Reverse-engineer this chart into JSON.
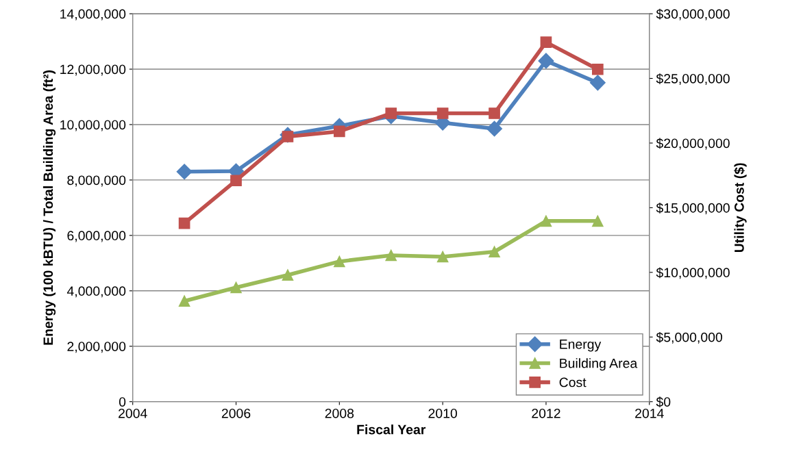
{
  "chart_data": {
    "type": "line",
    "xlabel": "Fiscal Year",
    "ylabel": "Energy (100 kBTU) / Total Building Area (ft²)",
    "y2label": "Utility Cost ($)",
    "x": [
      2005,
      2006,
      2007,
      2008,
      2009,
      2010,
      2011,
      2012,
      2013
    ],
    "series": [
      {
        "name": "Energy",
        "color": "#4f81bd",
        "marker": "diamond",
        "values": [
          8300000,
          8320000,
          9630000,
          9950000,
          10300000,
          10070000,
          9850000,
          12300000,
          11510000
        ]
      },
      {
        "name": "Building Area",
        "color": "#9bbb59",
        "marker": "triangle",
        "values": [
          3630000,
          4120000,
          4570000,
          5060000,
          5280000,
          5230000,
          5410000,
          6520000,
          6520000
        ]
      },
      {
        "name": "Cost",
        "color": "#c0504d",
        "marker": "square",
        "axis": "y2",
        "values": [
          13800000,
          17100000,
          20500000,
          20900000,
          22300000,
          22300000,
          22300000,
          27800000,
          25700000
        ]
      }
    ],
    "xlim": [
      2004,
      2014
    ],
    "xticks": [
      2004,
      2006,
      2008,
      2010,
      2012,
      2014
    ],
    "ylim": [
      0,
      14000000
    ],
    "yticks": [
      0,
      {
        "value": 2000000,
        "label": "2,000,000"
      },
      {
        "value": 4000000,
        "label": "4,000,000"
      },
      {
        "value": 6000000,
        "label": "6,000,000"
      },
      {
        "value": 8000000,
        "label": "8,000,000"
      },
      {
        "value": 10000000,
        "label": "10,000,000"
      },
      {
        "value": 12000000,
        "label": "12,000,000"
      },
      {
        "value": 14000000,
        "label": "14,000,000"
      }
    ],
    "y2lim": [
      0,
      30000000
    ],
    "y2ticks": [
      {
        "value": 0,
        "label": "$0"
      },
      {
        "value": 5000000,
        "label": "$5,000,000"
      },
      {
        "value": 10000000,
        "label": "$10,000,000"
      },
      {
        "value": 15000000,
        "label": "$15,000,000"
      },
      {
        "value": 20000000,
        "label": "$20,000,000"
      },
      {
        "value": 25000000,
        "label": "$25,000,000"
      },
      {
        "value": 30000000,
        "label": "$30,000,000"
      }
    ],
    "grid": "y",
    "legend": "bottom right",
    "line_style": "solid"
  }
}
